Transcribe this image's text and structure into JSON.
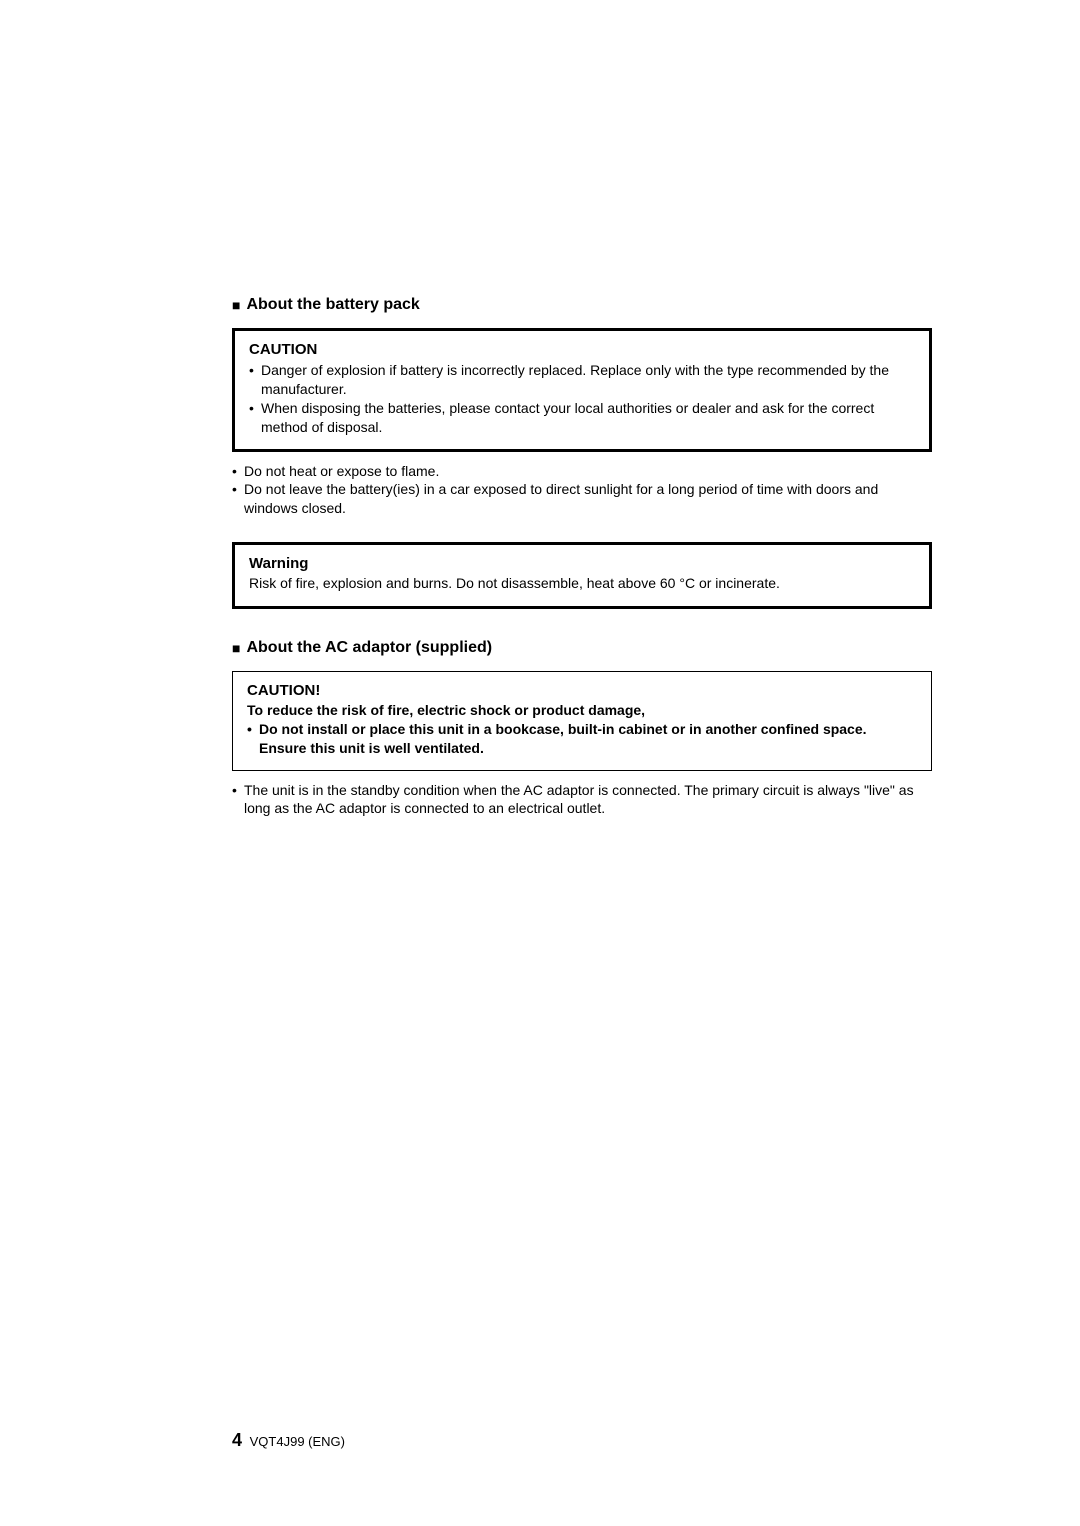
{
  "section1": {
    "heading": "About the battery pack",
    "cautionBox": {
      "title": "CAUTION",
      "items": [
        "Danger of explosion if battery is incorrectly replaced. Replace only with the type recommended by the manufacturer.",
        "When disposing the batteries, please contact your local authorities or dealer and ask for the correct method of disposal."
      ]
    },
    "plainItems": [
      "Do not heat or expose to flame.",
      "Do not leave the battery(ies) in a car exposed to direct sunlight for a long period of time with doors and windows closed."
    ],
    "warningBox": {
      "title": "Warning",
      "text": "Risk of fire, explosion and burns. Do not disassemble, heat above 60 °C or incinerate."
    }
  },
  "section2": {
    "heading": "About the AC adaptor (supplied)",
    "cautionBox": {
      "title": "CAUTION!",
      "subtitle": "To reduce the risk of fire, electric shock or product damage,",
      "items": [
        "Do not install or place this unit in a bookcase, built-in cabinet or in another confined space. Ensure this unit is well ventilated."
      ]
    },
    "plainItems": [
      "The unit is in the standby condition when the AC adaptor is connected. The primary circuit is always \"live\" as long as the AC adaptor is connected to an electrical outlet."
    ]
  },
  "footer": {
    "pageNumber": "4",
    "docId": "VQT4J99 (ENG)"
  }
}
